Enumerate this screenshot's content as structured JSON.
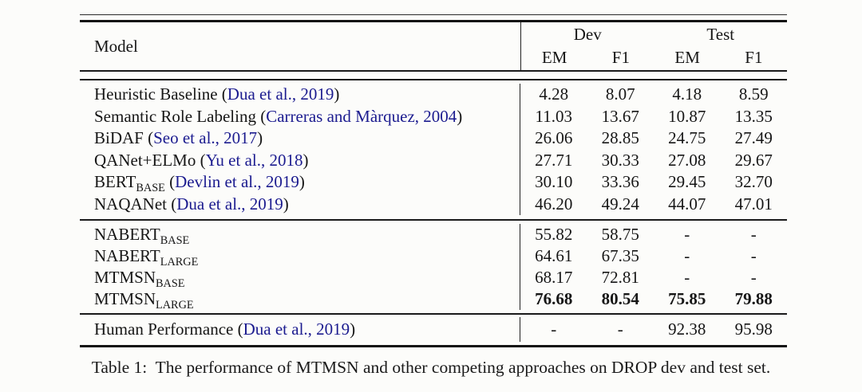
{
  "table": {
    "header": {
      "model": "Model",
      "dev": "Dev",
      "test": "Test",
      "sub": [
        "EM",
        "F1",
        "EM",
        "F1"
      ]
    },
    "groups": [
      {
        "rows": [
          {
            "name": "Heuristic Baseline",
            "sub": "",
            "open": " (",
            "cite": "Dua et al., 2019",
            "close": ")",
            "values": [
              "4.28",
              "8.07",
              "4.18",
              "8.59"
            ]
          },
          {
            "name": "Semantic Role Labeling",
            "sub": "",
            "open": " (",
            "cite": "Carreras and Màrquez, 2004",
            "close": ")",
            "values": [
              "11.03",
              "13.67",
              "10.87",
              "13.35"
            ]
          },
          {
            "name": "BiDAF",
            "sub": "",
            "open": " (",
            "cite": "Seo et al., 2017",
            "close": ")",
            "values": [
              "26.06",
              "28.85",
              "24.75",
              "27.49"
            ]
          },
          {
            "name": "QANet+ELMo",
            "sub": "",
            "open": " (",
            "cite": "Yu et al., 2018",
            "close": ")",
            "values": [
              "27.71",
              "30.33",
              "27.08",
              "29.67"
            ]
          },
          {
            "name": "BERT",
            "sub": "BASE",
            "open": " (",
            "cite": "Devlin et al., 2019",
            "close": ")",
            "values": [
              "30.10",
              "33.36",
              "29.45",
              "32.70"
            ]
          },
          {
            "name": "NAQANet",
            "sub": "",
            "open": " (",
            "cite": "Dua et al., 2019",
            "close": ")",
            "values": [
              "46.20",
              "49.24",
              "44.07",
              "47.01"
            ]
          }
        ]
      },
      {
        "rows": [
          {
            "name": "NABERT",
            "sub": "BASE",
            "values": [
              "55.82",
              "58.75",
              "-",
              "-"
            ]
          },
          {
            "name": "NABERT",
            "sub": "LARGE",
            "values": [
              "64.61",
              "67.35",
              "-",
              "-"
            ]
          },
          {
            "name": "MTMSN",
            "sub": "BASE",
            "values": [
              "68.17",
              "72.81",
              "-",
              "-"
            ]
          },
          {
            "name": "MTMSN",
            "sub": "LARGE",
            "values": [
              "76.68",
              "80.54",
              "75.85",
              "79.88"
            ]
          }
        ]
      },
      {
        "rows": [
          {
            "name": "Human Performance",
            "sub": "",
            "open": " (",
            "cite": "Dua et al., 2019",
            "close": ")",
            "values": [
              "-",
              "-",
              "92.38",
              "95.98"
            ]
          }
        ]
      }
    ]
  },
  "caption": "Table 1:  The performance of MTMSN and other competing approaches on DROP dev and test set.",
  "colors": {
    "citation": "#1b1b8f",
    "text": "#161616",
    "rule": "#1a1a1a",
    "background": "#fcfcfa"
  }
}
